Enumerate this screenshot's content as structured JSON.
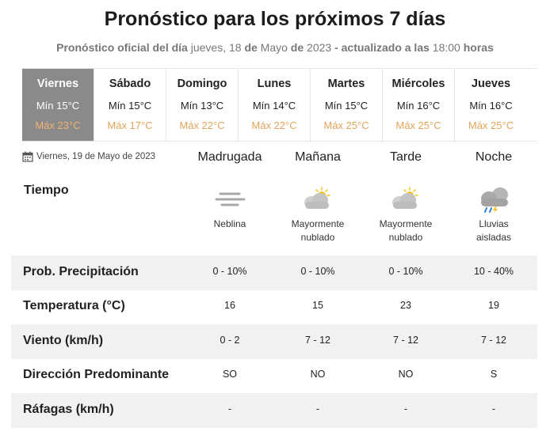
{
  "header": {
    "title": "Pronóstico para los próximos 7 días",
    "subtitle_part1": "Pronóstico oficial del día",
    "subtitle_day": "jueves, 18",
    "subtitle_de1": "de",
    "subtitle_month": "Mayo",
    "subtitle_de2": "de",
    "subtitle_year": "2023",
    "subtitle_part2": "- actualizado a las",
    "subtitle_time": "18:00",
    "subtitle_hours": "horas"
  },
  "days": [
    {
      "name": "Viernes",
      "min": "Mín 15°C",
      "max": "Máx 23°C"
    },
    {
      "name": "Sábado",
      "min": "Mín 15°C",
      "max": "Máx 17°C"
    },
    {
      "name": "Domingo",
      "min": "Mín 13°C",
      "max": "Máx 22°C"
    },
    {
      "name": "Lunes",
      "min": "Mín 14°C",
      "max": "Máx 22°C"
    },
    {
      "name": "Martes",
      "min": "Mín 15°C",
      "max": "Máx 25°C"
    },
    {
      "name": "Miércoles",
      "min": "Mín 16°C",
      "max": "Máx 25°C"
    },
    {
      "name": "Jueves",
      "min": "Mín 16°C",
      "max": "Máx 25°C"
    }
  ],
  "selected_date": "Viernes, 19 de Mayo de 2023",
  "periods": [
    "Madrugada",
    "Mañana",
    "Tarde",
    "Noche"
  ],
  "weather": {
    "label": "Tiempo",
    "items": [
      {
        "icon": "fog-icon",
        "desc1": "Neblina",
        "desc2": ""
      },
      {
        "icon": "mostly-cloudy-icon",
        "desc1": "Mayormente",
        "desc2": "nublado"
      },
      {
        "icon": "mostly-cloudy-icon",
        "desc1": "Mayormente",
        "desc2": "nublado"
      },
      {
        "icon": "isolated-rain-icon",
        "desc1": "Lluvias",
        "desc2": "aisladas"
      }
    ]
  },
  "rows": [
    {
      "label": "Prob. Precipitación",
      "values": [
        "0 - 10%",
        "0 - 10%",
        "0 - 10%",
        "10 - 40%"
      ]
    },
    {
      "label": "Temperatura (°C)",
      "values": [
        "16",
        "15",
        "23",
        "19"
      ]
    },
    {
      "label": "Viento (km/h)",
      "values": [
        "0 - 2",
        "7 - 12",
        "7 - 12",
        "7 - 12"
      ]
    },
    {
      "label": "Dirección Predominante",
      "values": [
        "SO",
        "NO",
        "NO",
        "S"
      ]
    },
    {
      "label": "Ráfagas (km/h)",
      "values": [
        "-",
        "-",
        "-",
        "-"
      ]
    }
  ],
  "colors": {
    "selected_day_bg": "#8a8a8a",
    "max_temp": "#e3a45a",
    "row_shade": "#f1f1f1"
  }
}
